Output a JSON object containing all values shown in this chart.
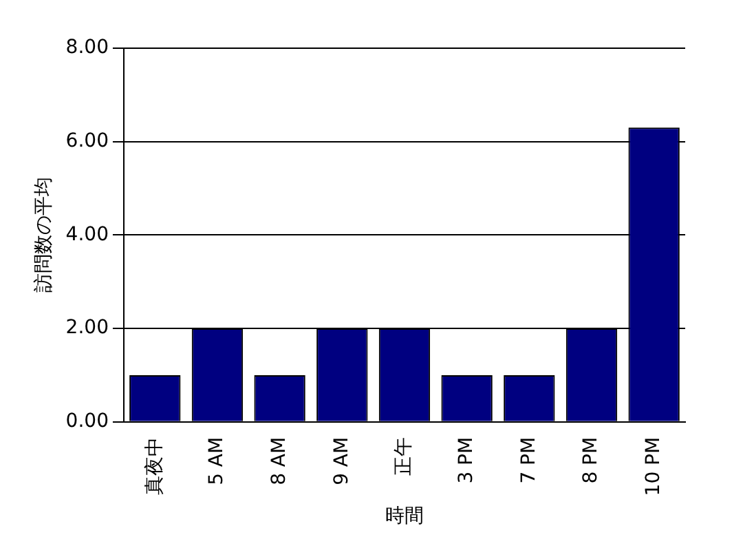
{
  "chart_data": {
    "type": "bar",
    "xlabel": "時間",
    "ylabel": "訪問数の平均",
    "categories": [
      "真夜中",
      "5 AM",
      "8 AM",
      "9 AM",
      "正午",
      "3 PM",
      "7 PM",
      "8 PM",
      "10 PM"
    ],
    "values": [
      1,
      2,
      1,
      2,
      2,
      1,
      1,
      2,
      6.3
    ],
    "color": "#000080",
    "ylim": [
      0,
      8
    ],
    "yticks": [
      {
        "value": 0,
        "label": "0.00"
      },
      {
        "value": 2,
        "label": "2.00"
      },
      {
        "value": 4,
        "label": "4.00"
      },
      {
        "value": 6,
        "label": "6.00"
      },
      {
        "value": 8,
        "label": "8.00"
      }
    ],
    "grid": "y",
    "legend": false
  }
}
